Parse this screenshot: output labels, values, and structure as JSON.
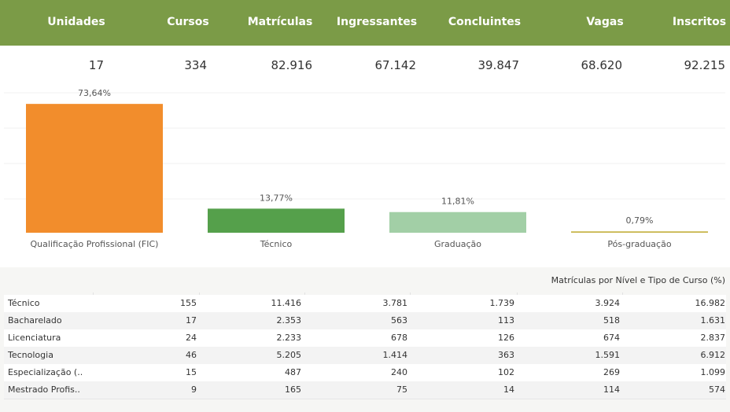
{
  "kpis": {
    "labels": [
      "Unidades",
      "Cursos",
      "Matrículas",
      "Ingressantes",
      "Concluintes",
      "Vagas",
      "Inscritos"
    ],
    "values": [
      "17",
      "334",
      "82.916",
      "67.142",
      "39.847",
      "68.620",
      "92.215"
    ]
  },
  "chart_data": {
    "type": "bar",
    "categories": [
      "Qualificação Profissional (FIC)",
      "Técnico",
      "Graduação",
      "Pós-graduação"
    ],
    "values": [
      73.64,
      13.77,
      11.81,
      0.79
    ],
    "value_labels": [
      "73,64%",
      "13,77%",
      "11,81%",
      "0,79%"
    ],
    "colors": [
      "#f28d2c",
      "#55a04b",
      "#a2cfa6",
      "#c8b54a"
    ],
    "ylim": [
      0,
      80
    ]
  },
  "table": {
    "title": "Matrículas por Nível e Tipo de Curso (%)",
    "rows": [
      [
        "Técnico",
        "155",
        "11.416",
        "3.781",
        "1.739",
        "3.924",
        "16.982"
      ],
      [
        "Bacharelado",
        "17",
        "2.353",
        "563",
        "113",
        "518",
        "1.631"
      ],
      [
        "Licenciatura",
        "24",
        "2.233",
        "678",
        "126",
        "674",
        "2.837"
      ],
      [
        "Tecnologia",
        "46",
        "5.205",
        "1.414",
        "363",
        "1.591",
        "6.912"
      ],
      [
        "Especialização (..",
        "15",
        "487",
        "240",
        "102",
        "269",
        "1.099"
      ],
      [
        "Mestrado Profis..",
        "9",
        "165",
        "75",
        "14",
        "114",
        "574"
      ]
    ]
  }
}
